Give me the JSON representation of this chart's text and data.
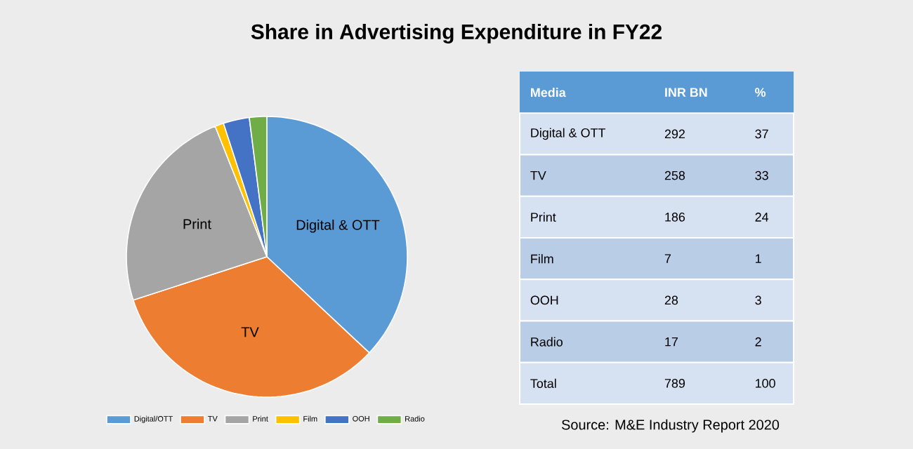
{
  "chart_data": [
    {
      "type": "pie",
      "title": "Share in Advertising Expenditure in  FY22",
      "categories": [
        "Digital/OTT",
        "TV",
        "Print",
        "Film",
        "OOH",
        "Radio"
      ],
      "values": [
        37,
        33,
        24,
        1,
        3,
        2
      ],
      "colors": [
        "#5b9bd5",
        "#ed7d31",
        "#a5a5a5",
        "#ffc000",
        "#4472c4",
        "#70ad47"
      ],
      "legend": "bottom",
      "annotations": [
        {
          "text": "Digital & OTT",
          "x": "Digital/OTT"
        },
        {
          "text": "TV",
          "x": "TV"
        },
        {
          "text": "Print",
          "x": "Print"
        }
      ]
    },
    {
      "type": "other",
      "xlabel": "Media",
      "categories": [
        "Digital & OTT",
        "TV",
        "Print",
        "Film",
        "OOH",
        "Radio",
        "Total"
      ],
      "series": [
        {
          "name": "INR BN",
          "colors": [
            "#d6e1f1",
            "#b9cde6",
            "#d6e1f1",
            "#b9cde6",
            "#d6e1f1",
            "#b9cde6",
            "#d6e1f1"
          ],
          "values": [
            292,
            258,
            186,
            7,
            28,
            17,
            789
          ]
        },
        {
          "name": "%",
          "values": [
            37,
            33,
            24,
            1,
            3,
            2,
            100
          ]
        }
      ],
      "data_labels": true,
      "annotations": [
        "Source: M&E Industry Report 2020"
      ]
    }
  ]
}
